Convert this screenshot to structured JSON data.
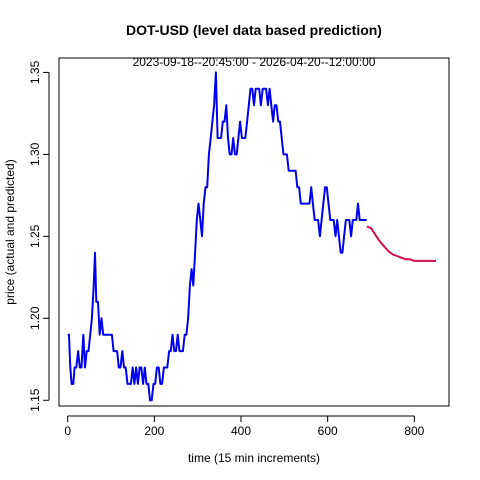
{
  "chart_data": {
    "type": "line",
    "title": "DOT-USD (level data based prediction)",
    "subtitle": "2023-09-18--20:45:00  -  2026-04-20--12:00:00",
    "xlabel": "time (15 min increments)",
    "ylabel": "price (actual and predicted)",
    "xlim": [
      -20,
      880
    ],
    "ylim": [
      1.1465,
      1.3588
    ],
    "x_ticks": [
      0,
      200,
      400,
      600,
      800
    ],
    "y_ticks": [
      1.15,
      1.2,
      1.25,
      1.3,
      1.35
    ],
    "grid": false,
    "series": [
      {
        "role": "actual",
        "color": "#0000ee",
        "points": [
          [
            0,
            1.19
          ],
          [
            3,
            1.19
          ],
          [
            6,
            1.17
          ],
          [
            9,
            1.16
          ],
          [
            13,
            1.16
          ],
          [
            16,
            1.17
          ],
          [
            20,
            1.17
          ],
          [
            24,
            1.18
          ],
          [
            28,
            1.17
          ],
          [
            32,
            1.17
          ],
          [
            36,
            1.19
          ],
          [
            40,
            1.17
          ],
          [
            44,
            1.18
          ],
          [
            48,
            1.18
          ],
          [
            52,
            1.19
          ],
          [
            56,
            1.2
          ],
          [
            60,
            1.22
          ],
          [
            63,
            1.24
          ],
          [
            66,
            1.21
          ],
          [
            70,
            1.21
          ],
          [
            74,
            1.19
          ],
          [
            78,
            1.2
          ],
          [
            82,
            1.19
          ],
          [
            86,
            1.19
          ],
          [
            90,
            1.19
          ],
          [
            94,
            1.19
          ],
          [
            98,
            1.19
          ],
          [
            102,
            1.19
          ],
          [
            106,
            1.18
          ],
          [
            110,
            1.18
          ],
          [
            114,
            1.18
          ],
          [
            118,
            1.17
          ],
          [
            122,
            1.17
          ],
          [
            126,
            1.18
          ],
          [
            130,
            1.17
          ],
          [
            134,
            1.17
          ],
          [
            138,
            1.16
          ],
          [
            142,
            1.16
          ],
          [
            146,
            1.16
          ],
          [
            150,
            1.17
          ],
          [
            154,
            1.16
          ],
          [
            158,
            1.17
          ],
          [
            162,
            1.16
          ],
          [
            166,
            1.17
          ],
          [
            170,
            1.17
          ],
          [
            174,
            1.16
          ],
          [
            178,
            1.17
          ],
          [
            182,
            1.16
          ],
          [
            186,
            1.16
          ],
          [
            190,
            1.15
          ],
          [
            194,
            1.15
          ],
          [
            198,
            1.16
          ],
          [
            202,
            1.16
          ],
          [
            206,
            1.17
          ],
          [
            210,
            1.17
          ],
          [
            214,
            1.16
          ],
          [
            218,
            1.16
          ],
          [
            222,
            1.17
          ],
          [
            226,
            1.17
          ],
          [
            230,
            1.17
          ],
          [
            234,
            1.18
          ],
          [
            238,
            1.18
          ],
          [
            242,
            1.19
          ],
          [
            246,
            1.18
          ],
          [
            250,
            1.18
          ],
          [
            254,
            1.19
          ],
          [
            258,
            1.18
          ],
          [
            262,
            1.18
          ],
          [
            266,
            1.18
          ],
          [
            270,
            1.19
          ],
          [
            274,
            1.19
          ],
          [
            278,
            1.2
          ],
          [
            282,
            1.22
          ],
          [
            286,
            1.23
          ],
          [
            290,
            1.22
          ],
          [
            294,
            1.24
          ],
          [
            298,
            1.26
          ],
          [
            302,
            1.27
          ],
          [
            306,
            1.26
          ],
          [
            310,
            1.25
          ],
          [
            314,
            1.27
          ],
          [
            318,
            1.28
          ],
          [
            322,
            1.28
          ],
          [
            326,
            1.3
          ],
          [
            330,
            1.31
          ],
          [
            334,
            1.32
          ],
          [
            338,
            1.33
          ],
          [
            342,
            1.35
          ],
          [
            346,
            1.31
          ],
          [
            350,
            1.31
          ],
          [
            354,
            1.31
          ],
          [
            358,
            1.32
          ],
          [
            362,
            1.32
          ],
          [
            366,
            1.33
          ],
          [
            370,
            1.31
          ],
          [
            374,
            1.3
          ],
          [
            378,
            1.3
          ],
          [
            382,
            1.31
          ],
          [
            386,
            1.3
          ],
          [
            390,
            1.3
          ],
          [
            394,
            1.31
          ],
          [
            398,
            1.32
          ],
          [
            402,
            1.31
          ],
          [
            406,
            1.31
          ],
          [
            410,
            1.31
          ],
          [
            414,
            1.32
          ],
          [
            418,
            1.33
          ],
          [
            422,
            1.34
          ],
          [
            426,
            1.34
          ],
          [
            430,
            1.33
          ],
          [
            434,
            1.34
          ],
          [
            438,
            1.34
          ],
          [
            442,
            1.34
          ],
          [
            446,
            1.33
          ],
          [
            450,
            1.34
          ],
          [
            454,
            1.34
          ],
          [
            458,
            1.34
          ],
          [
            462,
            1.33
          ],
          [
            466,
            1.34
          ],
          [
            470,
            1.33
          ],
          [
            474,
            1.32
          ],
          [
            478,
            1.33
          ],
          [
            482,
            1.33
          ],
          [
            486,
            1.32
          ],
          [
            490,
            1.32
          ],
          [
            494,
            1.31
          ],
          [
            498,
            1.3
          ],
          [
            502,
            1.3
          ],
          [
            506,
            1.3
          ],
          [
            510,
            1.29
          ],
          [
            514,
            1.29
          ],
          [
            518,
            1.29
          ],
          [
            522,
            1.29
          ],
          [
            526,
            1.29
          ],
          [
            530,
            1.28
          ],
          [
            534,
            1.28
          ],
          [
            538,
            1.27
          ],
          [
            542,
            1.27
          ],
          [
            546,
            1.27
          ],
          [
            550,
            1.27
          ],
          [
            554,
            1.27
          ],
          [
            558,
            1.27
          ],
          [
            562,
            1.28
          ],
          [
            566,
            1.27
          ],
          [
            570,
            1.26
          ],
          [
            574,
            1.26
          ],
          [
            578,
            1.26
          ],
          [
            582,
            1.25
          ],
          [
            586,
            1.26
          ],
          [
            590,
            1.27
          ],
          [
            594,
            1.28
          ],
          [
            598,
            1.28
          ],
          [
            602,
            1.27
          ],
          [
            606,
            1.26
          ],
          [
            610,
            1.26
          ],
          [
            614,
            1.26
          ],
          [
            618,
            1.25
          ],
          [
            622,
            1.26
          ],
          [
            626,
            1.25
          ],
          [
            630,
            1.24
          ],
          [
            634,
            1.24
          ],
          [
            638,
            1.25
          ],
          [
            642,
            1.26
          ],
          [
            646,
            1.26
          ],
          [
            650,
            1.26
          ],
          [
            654,
            1.25
          ],
          [
            658,
            1.26
          ],
          [
            662,
            1.26
          ],
          [
            666,
            1.26
          ],
          [
            670,
            1.27
          ],
          [
            674,
            1.26
          ],
          [
            678,
            1.26
          ],
          [
            682,
            1.26
          ],
          [
            686,
            1.26
          ],
          [
            690,
            1.26
          ]
        ]
      },
      {
        "role": "predicted",
        "color": "#d0104a",
        "points": [
          [
            690,
            1.256
          ],
          [
            700,
            1.255
          ],
          [
            710,
            1.251
          ],
          [
            720,
            1.247
          ],
          [
            730,
            1.244
          ],
          [
            740,
            1.241
          ],
          [
            750,
            1.239
          ],
          [
            760,
            1.238
          ],
          [
            770,
            1.237
          ],
          [
            780,
            1.236
          ],
          [
            790,
            1.236
          ],
          [
            800,
            1.235
          ],
          [
            810,
            1.235
          ],
          [
            820,
            1.235
          ],
          [
            830,
            1.235
          ],
          [
            840,
            1.235
          ],
          [
            850,
            1.235
          ]
        ]
      }
    ]
  }
}
